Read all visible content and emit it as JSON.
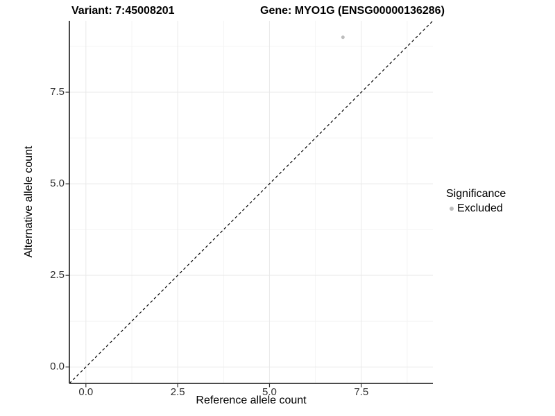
{
  "chart_data": {
    "type": "scatter",
    "title_left": "Variant: 7:45008201",
    "title_right": "Gene: MYO1G (ENSG00000136286)",
    "x_axis": {
      "title": "Reference allele count",
      "lim": [
        -0.45,
        9.45
      ],
      "ticks": [
        {
          "v": 0.0,
          "label": "0.0"
        },
        {
          "v": 2.5,
          "label": "2.5"
        },
        {
          "v": 5.0,
          "label": "5.0"
        },
        {
          "v": 7.5,
          "label": "7.5"
        }
      ],
      "minor": [
        1.25,
        3.75,
        6.25,
        8.75
      ]
    },
    "y_axis": {
      "title": "Alternative allele count",
      "lim": [
        -0.45,
        9.45
      ],
      "ticks": [
        {
          "v": 0.0,
          "label": "0.0"
        },
        {
          "v": 2.5,
          "label": "2.5"
        },
        {
          "v": 5.0,
          "label": "5.0"
        },
        {
          "v": 7.5,
          "label": "7.5"
        }
      ],
      "minor": [
        1.25,
        3.75,
        6.25,
        8.75
      ]
    },
    "grid": true,
    "reference_line": {
      "type": "abline",
      "slope": 1,
      "intercept": 0,
      "style": "dashed",
      "color": "#000000"
    },
    "series": [
      {
        "name": "Excluded",
        "color": "#bdbdbd",
        "points": [
          {
            "x": 7,
            "y": 9
          }
        ],
        "point_radius": 2.5
      }
    ],
    "legend": {
      "title": "Significance",
      "position": "right",
      "items": [
        {
          "label": "Excluded",
          "color": "#bdbdbd"
        }
      ]
    },
    "colors": {
      "background": "#ffffff",
      "grid_major": "#e9e9e9",
      "grid_minor": "#f4f4f4",
      "axis_line": "#333333",
      "tick_mark": "#333333",
      "tick_label": "#303030",
      "text": "#000000"
    }
  }
}
